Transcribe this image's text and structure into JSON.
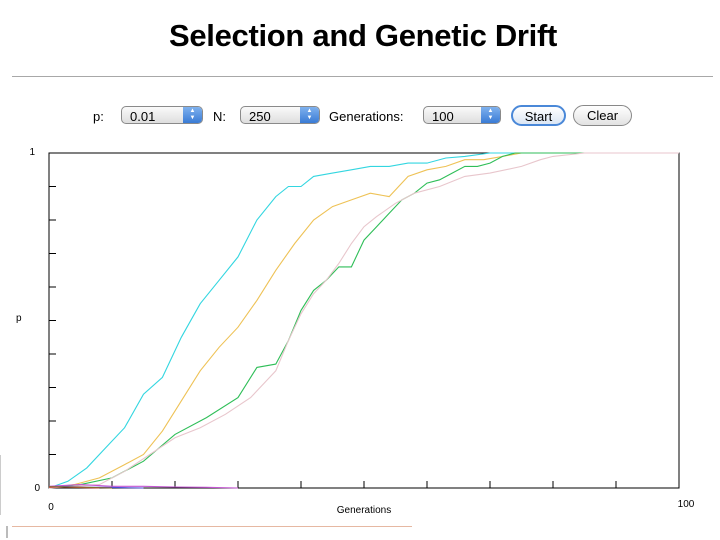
{
  "title": "Selection and Genetic Drift",
  "controls": {
    "p_label": "p:",
    "p_value": "0.01",
    "n_label": "N:",
    "n_value": "250",
    "gen_label": "Generations:",
    "gen_value": "100",
    "start_label": "Start",
    "clear_label": "Clear"
  },
  "chart_data": {
    "type": "line",
    "xlabel": "Generations",
    "ylabel": "p",
    "xlim": [
      0,
      100
    ],
    "ylim": [
      0,
      1
    ],
    "x_tick_labels": [
      "0",
      "100"
    ],
    "y_tick_labels": [
      "0",
      "1"
    ],
    "grid": false,
    "series": [
      {
        "color": "#33d6e0",
        "x": [
          0,
          3,
          6,
          9,
          12,
          15,
          18,
          21,
          24,
          27,
          30,
          33,
          36,
          38,
          40,
          42,
          45,
          48,
          51,
          54,
          57,
          60,
          63,
          66,
          70,
          74,
          78,
          100
        ],
        "y": [
          0,
          0.02,
          0.06,
          0.12,
          0.18,
          0.28,
          0.33,
          0.45,
          0.55,
          0.62,
          0.69,
          0.8,
          0.87,
          0.9,
          0.9,
          0.93,
          0.94,
          0.95,
          0.96,
          0.96,
          0.97,
          0.97,
          0.985,
          0.99,
          1,
          1,
          1,
          1
        ]
      },
      {
        "color": "#eec256",
        "x": [
          0,
          4,
          8,
          12,
          15,
          18,
          21,
          24,
          27,
          30,
          33,
          36,
          39,
          42,
          45,
          48,
          51,
          54,
          57,
          60,
          63,
          66,
          69,
          72,
          75,
          100
        ],
        "y": [
          0,
          0.01,
          0.03,
          0.07,
          0.1,
          0.17,
          0.26,
          0.35,
          0.42,
          0.48,
          0.56,
          0.65,
          0.73,
          0.8,
          0.84,
          0.86,
          0.88,
          0.87,
          0.93,
          0.95,
          0.96,
          0.98,
          0.98,
          0.99,
          1,
          1
        ]
      },
      {
        "color": "#2fbe58",
        "x": [
          0,
          5,
          10,
          15,
          20,
          25,
          30,
          33,
          36,
          38,
          40,
          42,
          44,
          46,
          48,
          50,
          52,
          54,
          56,
          58,
          60,
          62,
          64,
          66,
          68,
          70,
          72,
          74,
          100
        ],
        "y": [
          0,
          0.01,
          0.03,
          0.08,
          0.16,
          0.21,
          0.27,
          0.36,
          0.37,
          0.44,
          0.53,
          0.59,
          0.62,
          0.66,
          0.66,
          0.74,
          0.78,
          0.82,
          0.86,
          0.88,
          0.91,
          0.92,
          0.94,
          0.96,
          0.96,
          0.97,
          0.99,
          1,
          1
        ]
      },
      {
        "color": "#e8c6cc",
        "x": [
          0,
          8,
          12,
          16,
          20,
          24,
          28,
          32,
          36,
          38,
          40,
          42,
          44,
          46,
          48,
          50,
          52,
          55,
          58,
          62,
          66,
          70,
          75,
          78,
          80,
          85,
          100
        ],
        "y": [
          0,
          0.01,
          0.05,
          0.1,
          0.15,
          0.18,
          0.22,
          0.27,
          0.35,
          0.44,
          0.52,
          0.58,
          0.62,
          0.67,
          0.73,
          0.78,
          0.81,
          0.85,
          0.88,
          0.9,
          0.93,
          0.94,
          0.96,
          0.98,
          0.99,
          1,
          1
        ]
      },
      {
        "color": "#c455d2",
        "x": [
          0,
          5,
          10,
          15,
          20,
          25,
          30
        ],
        "y": [
          0.005,
          0.01,
          0.005,
          0.005,
          0.003,
          0.002,
          0
        ]
      },
      {
        "color": "#4a4ad6",
        "x": [
          0,
          3,
          6,
          9,
          12,
          15
        ],
        "y": [
          0.003,
          0.004,
          0.002,
          0.002,
          0.001,
          0
        ]
      },
      {
        "color": "#d9343a",
        "x": [
          0,
          2,
          4,
          6,
          8
        ],
        "y": [
          0.002,
          0.003,
          0.002,
          0.001,
          0
        ]
      },
      {
        "color": "#8a6a2a",
        "x": [
          0,
          3,
          6,
          10
        ],
        "y": [
          0.004,
          0.003,
          0.002,
          0
        ]
      }
    ]
  }
}
